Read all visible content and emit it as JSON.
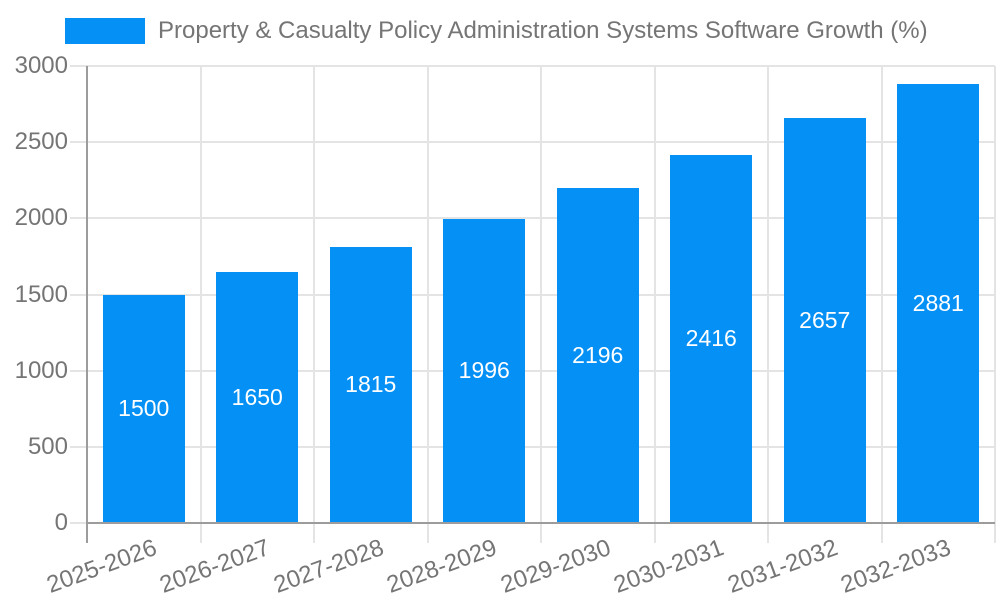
{
  "colors": {
    "bar": "#0590f5",
    "grid": "#e4e4e4",
    "axis": "#9c9c9c",
    "text": "#757575",
    "value_label": "#ffffff",
    "background": "#ffffff"
  },
  "chart_data": {
    "type": "bar",
    "title": "Property & Casualty Policy Administration Systems Software Growth (%)",
    "categories": [
      "2025-2026",
      "2026-2027",
      "2027-2028",
      "2028-2029",
      "2029-2030",
      "2030-2031",
      "2031-2032",
      "2032-2033"
    ],
    "values": [
      1500,
      1650,
      1815,
      1996,
      2196,
      2416,
      2657,
      2881
    ],
    "xlabel": "",
    "ylabel": "",
    "ylim": [
      0,
      3000
    ],
    "yticks": [
      0,
      500,
      1000,
      1500,
      2000,
      2500,
      3000
    ],
    "grid": true,
    "legend_position": "top-left",
    "value_label_style": "white-centered-inside-bar",
    "x_tick_rotation_deg": -20
  }
}
